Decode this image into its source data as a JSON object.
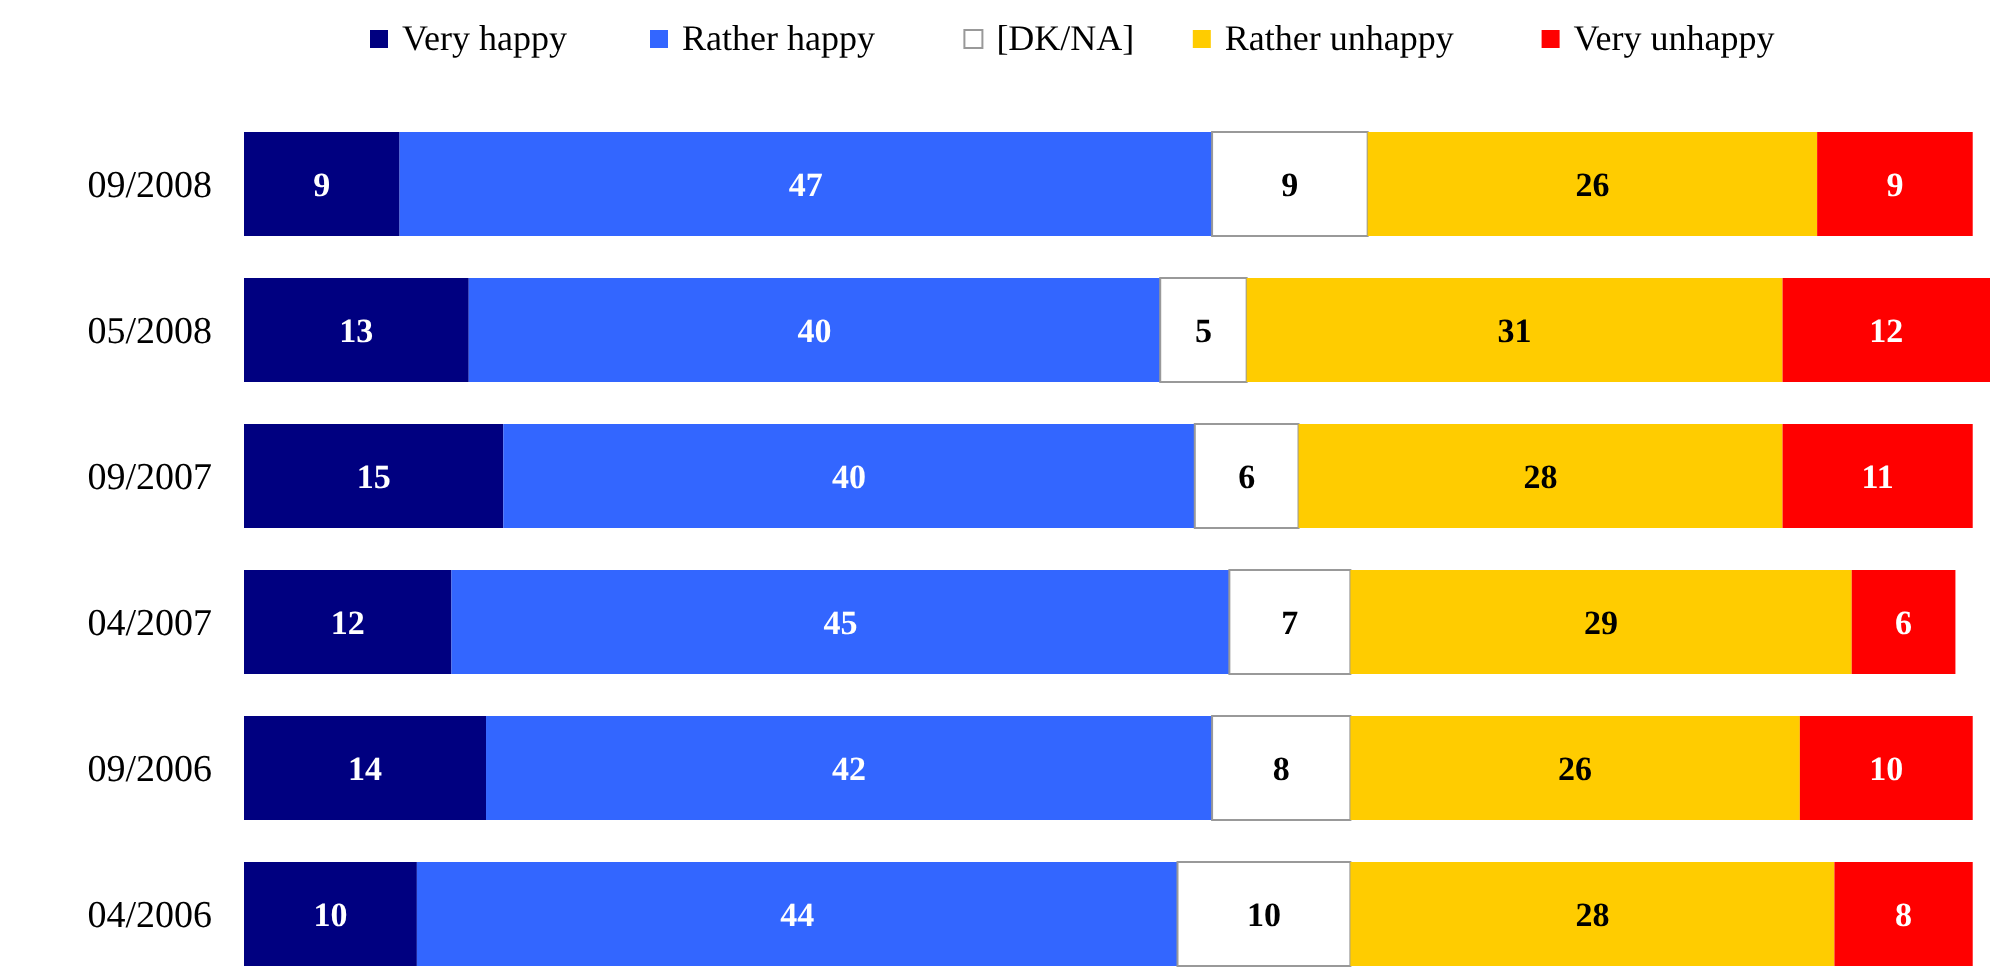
{
  "chart_data": {
    "type": "bar",
    "orientation": "horizontal",
    "stacked": true,
    "data_labels": true,
    "legend": "top",
    "categories": [
      "09/2008",
      "05/2008",
      "09/2007",
      "04/2007",
      "09/2006",
      "04/2006"
    ],
    "series": [
      {
        "name": "Very happy",
        "color": "#000080",
        "values": [
          9,
          13,
          15,
          12,
          14,
          10
        ]
      },
      {
        "name": "Rather happy",
        "color": "#3366ff",
        "values": [
          47,
          40,
          40,
          45,
          42,
          44
        ]
      },
      {
        "name": "[DK/NA]",
        "color": "#ffffff",
        "values": [
          9,
          5,
          6,
          7,
          8,
          10
        ]
      },
      {
        "name": "Rather unhappy",
        "color": "#ffcc00",
        "values": [
          26,
          31,
          28,
          29,
          26,
          28
        ]
      },
      {
        "name": "Very unhappy",
        "color": "#ff0000",
        "values": [
          9,
          12,
          11,
          6,
          10,
          8
        ]
      }
    ]
  }
}
